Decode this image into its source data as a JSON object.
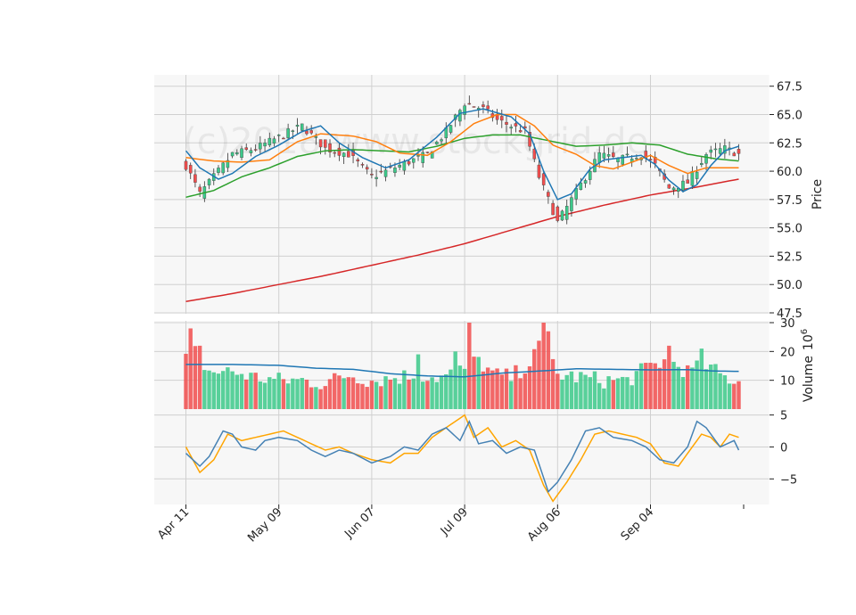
{
  "chart_data": {
    "type": "candlestick",
    "watermark": "(c)2018 www.stockgrid.de",
    "x_tick_labels": [
      "Apr 11",
      "May 09",
      "Jun 07",
      "Jul 09",
      "Aug 06",
      "Sep 04"
    ],
    "n_days": 120,
    "colors": {
      "up": "#3cc98a",
      "down": "#f14d4d",
      "ma_fast": "#1f77b4",
      "ma_mid": "#ff7f0e",
      "ma_slow": "#2ca02c",
      "ma_long": "#d62728",
      "vol_ma": "#1f77b4",
      "osc_a": "#4682b4",
      "osc_b": "#ffa500",
      "grid": "#d0d0d0",
      "panel_bg": "#f7f7f7"
    },
    "price_panel": {
      "ylabel": "Price",
      "ylim": [
        47.5,
        68.5
      ],
      "y_ticks": [
        47.5,
        50.0,
        52.5,
        55.0,
        57.5,
        60.0,
        62.5,
        65.0,
        67.5
      ],
      "y_tick_labels": [
        "47.5",
        "50.0",
        "52.5",
        "55.0",
        "57.5",
        "60.0",
        "62.5",
        "65.0",
        "67.5"
      ],
      "close_anchors": [
        [
          0,
          60.5
        ],
        [
          3,
          58.0
        ],
        [
          6,
          59.5
        ],
        [
          10,
          61.5
        ],
        [
          15,
          62.0
        ],
        [
          20,
          63.0
        ],
        [
          25,
          64.0
        ],
        [
          30,
          62.0
        ],
        [
          35,
          61.5
        ],
        [
          40,
          59.5
        ],
        [
          46,
          60.5
        ],
        [
          52,
          61.5
        ],
        [
          56,
          63.5
        ],
        [
          60,
          66.0
        ],
        [
          64,
          65.5
        ],
        [
          67,
          64.5
        ],
        [
          70,
          64.0
        ],
        [
          73,
          63.5
        ],
        [
          76,
          59.5
        ],
        [
          80,
          55.5
        ],
        [
          83,
          57.5
        ],
        [
          86,
          59.5
        ],
        [
          89,
          61.5
        ],
        [
          93,
          61.0
        ],
        [
          98,
          61.5
        ],
        [
          101,
          60.5
        ],
        [
          104,
          58.5
        ],
        [
          108,
          59.0
        ],
        [
          112,
          61.5
        ],
        [
          116,
          62.0
        ],
        [
          119,
          61.5
        ]
      ],
      "ma_fast": [
        [
          0,
          61.8
        ],
        [
          3,
          60.3
        ],
        [
          7,
          59.3
        ],
        [
          10,
          59.8
        ],
        [
          15,
          61.3
        ],
        [
          20,
          62.3
        ],
        [
          25,
          63.5
        ],
        [
          29,
          64.0
        ],
        [
          33,
          62.5
        ],
        [
          38,
          61.2
        ],
        [
          43,
          60.3
        ],
        [
          48,
          61.0
        ],
        [
          54,
          63.0
        ],
        [
          59,
          65.1
        ],
        [
          64,
          65.5
        ],
        [
          70,
          64.8
        ],
        [
          74,
          63.3
        ],
        [
          77,
          60.0
        ],
        [
          80,
          57.5
        ],
        [
          83,
          58.0
        ],
        [
          87,
          60.2
        ],
        [
          90,
          61.0
        ],
        [
          94,
          61.2
        ],
        [
          98,
          61.4
        ],
        [
          101,
          60.6
        ],
        [
          104,
          59.2
        ],
        [
          107,
          58.2
        ],
        [
          110,
          58.8
        ],
        [
          113,
          60.5
        ],
        [
          116,
          61.8
        ],
        [
          119,
          62.2
        ]
      ],
      "ma_mid": [
        [
          0,
          61.2
        ],
        [
          6,
          60.9
        ],
        [
          12,
          60.8
        ],
        [
          18,
          61.0
        ],
        [
          24,
          62.6
        ],
        [
          29,
          63.3
        ],
        [
          36,
          63.1
        ],
        [
          41,
          62.6
        ],
        [
          46,
          61.6
        ],
        [
          52,
          61.4
        ],
        [
          57,
          62.6
        ],
        [
          62,
          64.2
        ],
        [
          67,
          65.0
        ],
        [
          71,
          65.0
        ],
        [
          75,
          64.0
        ],
        [
          79,
          62.3
        ],
        [
          84,
          61.5
        ],
        [
          88,
          60.5
        ],
        [
          92,
          60.2
        ],
        [
          96,
          60.8
        ],
        [
          100,
          61.4
        ],
        [
          104,
          60.5
        ],
        [
          108,
          59.8
        ],
        [
          112,
          60.3
        ],
        [
          116,
          60.3
        ],
        [
          119,
          60.3
        ]
      ],
      "ma_slow": [
        [
          0,
          57.7
        ],
        [
          6,
          58.3
        ],
        [
          12,
          59.5
        ],
        [
          18,
          60.3
        ],
        [
          24,
          61.3
        ],
        [
          30,
          61.8
        ],
        [
          36,
          61.9
        ],
        [
          42,
          61.8
        ],
        [
          48,
          61.7
        ],
        [
          54,
          62.2
        ],
        [
          60,
          62.9
        ],
        [
          66,
          63.2
        ],
        [
          72,
          63.2
        ],
        [
          78,
          62.7
        ],
        [
          84,
          62.2
        ],
        [
          90,
          62.3
        ],
        [
          96,
          62.5
        ],
        [
          102,
          62.3
        ],
        [
          108,
          61.5
        ],
        [
          114,
          61.1
        ],
        [
          119,
          60.9
        ]
      ],
      "ma_long": [
        [
          0,
          48.5
        ],
        [
          10,
          49.2
        ],
        [
          20,
          50.0
        ],
        [
          30,
          50.8
        ],
        [
          40,
          51.7
        ],
        [
          50,
          52.6
        ],
        [
          60,
          53.6
        ],
        [
          70,
          54.8
        ],
        [
          80,
          56.0
        ],
        [
          90,
          57.0
        ],
        [
          100,
          57.9
        ],
        [
          110,
          58.6
        ],
        [
          119,
          59.3
        ]
      ]
    },
    "volume_panel": {
      "ylabel": "Volume",
      "exponent_label": "10",
      "exponent_power": "6",
      "ylim": [
        0,
        30
      ],
      "y_ticks": [
        10,
        20,
        30
      ],
      "y_tick_labels": [
        "10",
        "20",
        "30"
      ],
      "base_anchors": [
        [
          0,
          17
        ],
        [
          2,
          20
        ],
        [
          5,
          13
        ],
        [
          10,
          13
        ],
        [
          15,
          11
        ],
        [
          20,
          10
        ],
        [
          25,
          10
        ],
        [
          30,
          9
        ],
        [
          35,
          12
        ],
        [
          40,
          10
        ],
        [
          45,
          11
        ],
        [
          50,
          12
        ],
        [
          55,
          11
        ],
        [
          60,
          14
        ],
        [
          63,
          17
        ],
        [
          66,
          12
        ],
        [
          70,
          11
        ],
        [
          74,
          16
        ],
        [
          77,
          24
        ],
        [
          80,
          12
        ],
        [
          85,
          11
        ],
        [
          90,
          10
        ],
        [
          95,
          10
        ],
        [
          100,
          15
        ],
        [
          104,
          17
        ],
        [
          108,
          13
        ],
        [
          112,
          15
        ],
        [
          116,
          11
        ],
        [
          119,
          10
        ]
      ],
      "spikes": [
        [
          1,
          28
        ],
        [
          3,
          22
        ],
        [
          61,
          30
        ],
        [
          77,
          30
        ],
        [
          78,
          27
        ],
        [
          104,
          22
        ],
        [
          111,
          21
        ],
        [
          58,
          20
        ],
        [
          50,
          19
        ]
      ],
      "vol_ma": [
        [
          0,
          15.5
        ],
        [
          10,
          15.5
        ],
        [
          20,
          15.2
        ],
        [
          28,
          14.2
        ],
        [
          36,
          13.8
        ],
        [
          44,
          12.3
        ],
        [
          52,
          11.5
        ],
        [
          60,
          11.2
        ],
        [
          68,
          12.5
        ],
        [
          76,
          13.2
        ],
        [
          84,
          14.0
        ],
        [
          92,
          13.8
        ],
        [
          100,
          13.6
        ],
        [
          108,
          13.7
        ],
        [
          114,
          13.2
        ],
        [
          119,
          13.1
        ]
      ]
    },
    "osc_panel": {
      "ylim": [
        -9,
        5.5
      ],
      "y_ticks": [
        -5,
        0,
        5
      ],
      "y_tick_labels": [
        "−5",
        "0",
        "5"
      ],
      "series_a": [
        [
          0,
          -1.0
        ],
        [
          3,
          -3.0
        ],
        [
          5,
          -1.5
        ],
        [
          8,
          2.5
        ],
        [
          10,
          2.0
        ],
        [
          12,
          0.0
        ],
        [
          15,
          -0.5
        ],
        [
          17,
          1.0
        ],
        [
          20,
          1.5
        ],
        [
          24,
          1.0
        ],
        [
          27,
          -0.5
        ],
        [
          30,
          -1.5
        ],
        [
          33,
          -0.5
        ],
        [
          36,
          -1.0
        ],
        [
          40,
          -2.5
        ],
        [
          44,
          -1.5
        ],
        [
          47,
          0.0
        ],
        [
          50,
          -0.5
        ],
        [
          53,
          2.0
        ],
        [
          56,
          3.0
        ],
        [
          59,
          1.0
        ],
        [
          61,
          4.0
        ],
        [
          63,
          0.5
        ],
        [
          66,
          1.0
        ],
        [
          69,
          -1.0
        ],
        [
          72,
          0.0
        ],
        [
          75,
          -0.5
        ],
        [
          78,
          -7.0
        ],
        [
          80,
          -5.5
        ],
        [
          83,
          -2.0
        ],
        [
          86,
          2.5
        ],
        [
          89,
          3.0
        ],
        [
          92,
          1.5
        ],
        [
          96,
          1.0
        ],
        [
          99,
          0.0
        ],
        [
          102,
          -2.0
        ],
        [
          105,
          -2.5
        ],
        [
          108,
          0.0
        ],
        [
          110,
          4.0
        ],
        [
          112,
          3.0
        ],
        [
          115,
          0.0
        ],
        [
          118,
          1.0
        ],
        [
          119,
          -0.5
        ]
      ],
      "series_b": [
        [
          0,
          0.0
        ],
        [
          3,
          -4.0
        ],
        [
          6,
          -2.0
        ],
        [
          9,
          2.0
        ],
        [
          12,
          1.0
        ],
        [
          15,
          1.5
        ],
        [
          18,
          2.0
        ],
        [
          21,
          2.5
        ],
        [
          24,
          1.5
        ],
        [
          27,
          0.5
        ],
        [
          30,
          -0.5
        ],
        [
          33,
          0.0
        ],
        [
          36,
          -1.0
        ],
        [
          40,
          -2.0
        ],
        [
          44,
          -2.5
        ],
        [
          47,
          -1.0
        ],
        [
          50,
          -1.0
        ],
        [
          53,
          1.5
        ],
        [
          56,
          3.0
        ],
        [
          60,
          5.0
        ],
        [
          62,
          1.5
        ],
        [
          65,
          3.0
        ],
        [
          68,
          0.0
        ],
        [
          71,
          1.0
        ],
        [
          74,
          -0.5
        ],
        [
          77,
          -6.0
        ],
        [
          79,
          -8.5
        ],
        [
          82,
          -5.5
        ],
        [
          85,
          -2.0
        ],
        [
          88,
          2.0
        ],
        [
          91,
          2.5
        ],
        [
          94,
          2.0
        ],
        [
          97,
          1.5
        ],
        [
          100,
          0.5
        ],
        [
          103,
          -2.5
        ],
        [
          106,
          -3.0
        ],
        [
          109,
          0.0
        ],
        [
          111,
          2.0
        ],
        [
          113,
          1.5
        ],
        [
          115,
          0.0
        ],
        [
          117,
          2.0
        ],
        [
          119,
          1.5
        ]
      ]
    }
  }
}
